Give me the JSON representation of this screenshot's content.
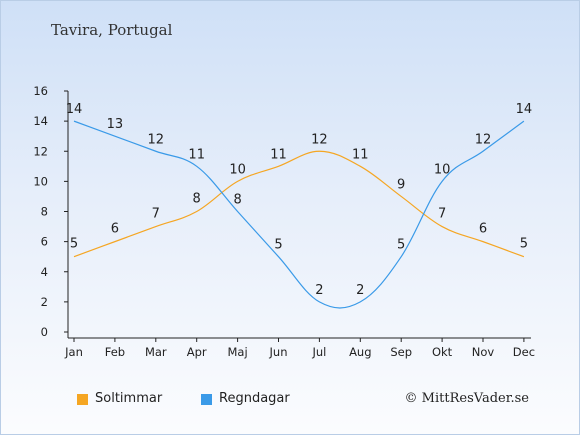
{
  "chart_data": {
    "type": "line",
    "title": "Tavira, Portugal",
    "categories": [
      "Jan",
      "Feb",
      "Mar",
      "Apr",
      "Maj",
      "Jun",
      "Jul",
      "Aug",
      "Sep",
      "Okt",
      "Nov",
      "Dec"
    ],
    "ylim": [
      0,
      16
    ],
    "yticks": [
      0,
      2,
      4,
      6,
      8,
      10,
      12,
      14,
      16
    ],
    "grid": false,
    "legend_position": "bottom-left",
    "series": [
      {
        "name": "Soltimmar",
        "color": "#f5a623",
        "values": [
          5,
          6,
          7,
          8,
          10,
          11,
          12,
          11,
          9,
          7,
          6,
          5
        ]
      },
      {
        "name": "Regndagar",
        "color": "#3a9ae8",
        "values": [
          14,
          13,
          12,
          11,
          8,
          5,
          2,
          2,
          5,
          10,
          12,
          14
        ]
      }
    ]
  },
  "copyright": "© MittResVader.se"
}
